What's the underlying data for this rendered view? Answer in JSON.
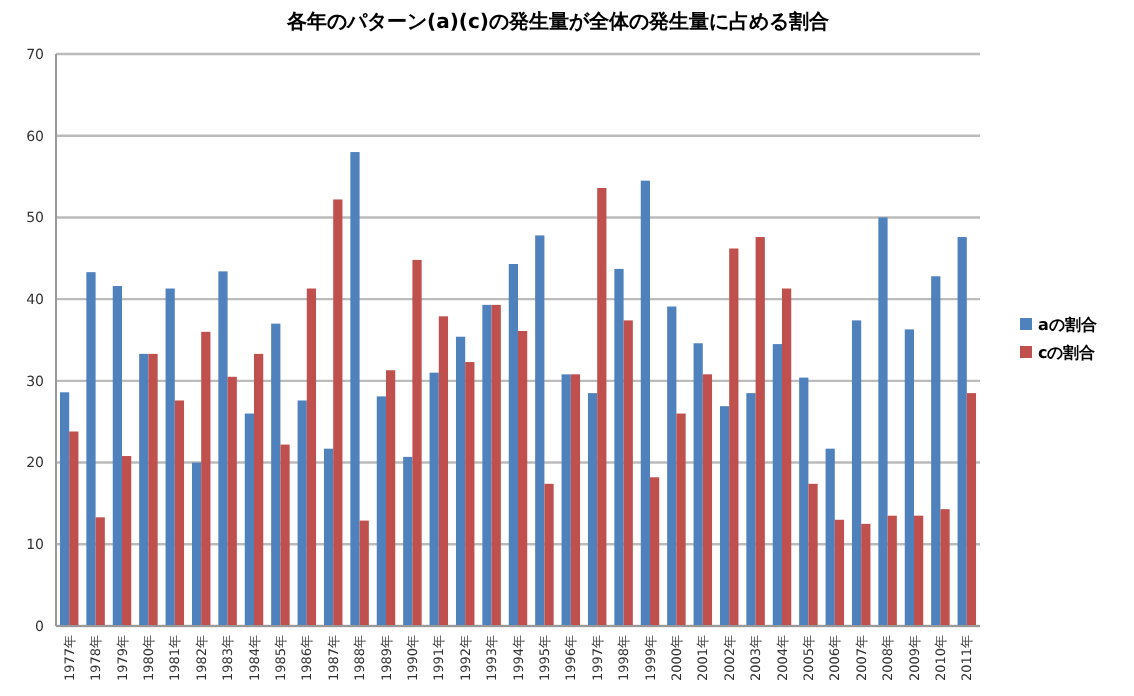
{
  "chart_data": {
    "type": "bar",
    "title": "各年のパターン(a)(c)の発生量が全体の発生量に占める割合",
    "categories": [
      "1977年",
      "1978年",
      "1979年",
      "1980年",
      "1981年",
      "1982年",
      "1983年",
      "1984年",
      "1985年",
      "1986年",
      "1987年",
      "1988年",
      "1989年",
      "1990年",
      "1991年",
      "1992年",
      "1993年",
      "1994年",
      "1995年",
      "1996年",
      "1997年",
      "1998年",
      "1999年",
      "2000年",
      "2001年",
      "2002年",
      "2003年",
      "2004年",
      "2005年",
      "2006年",
      "2007年",
      "2008年",
      "2009年",
      "2010年",
      "2011年"
    ],
    "series": [
      {
        "name": "aの割合",
        "color": "#4f81bd",
        "values": [
          28.6,
          43.3,
          41.6,
          33.3,
          41.3,
          20,
          43.4,
          26,
          37,
          27.6,
          21.7,
          58,
          28.1,
          20.7,
          31,
          35.4,
          39.3,
          44.3,
          47.8,
          30.8,
          28.5,
          43.7,
          54.5,
          39.1,
          34.6,
          26.9,
          28.5,
          34.5,
          30.4,
          21.7,
          37.4,
          50,
          36.3,
          42.8,
          47.6
        ]
      },
      {
        "name": "cの割合",
        "color": "#c0504d",
        "values": [
          23.8,
          13.3,
          20.8,
          33.3,
          27.6,
          36,
          30.5,
          33.3,
          22.2,
          41.3,
          52.2,
          12.9,
          31.3,
          44.8,
          37.9,
          32.3,
          39.3,
          36.1,
          17.4,
          30.8,
          53.6,
          37.4,
          18.2,
          26,
          30.8,
          46.2,
          47.6,
          41.3,
          17.4,
          13,
          12.5,
          13.5,
          13.5,
          14.3,
          28.5
        ]
      }
    ],
    "ylim": [
      0,
      70
    ],
    "yticks": [
      0,
      10,
      20,
      30,
      40,
      50,
      60,
      70
    ],
    "grid": "y",
    "legend": "right"
  }
}
